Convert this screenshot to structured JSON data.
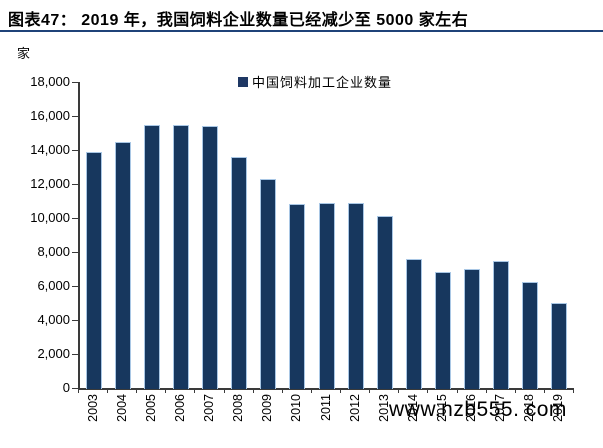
{
  "header": {
    "title": "图表47： 2019 年，我国饲料企业数量已经减少至 5000 家左右"
  },
  "y_axis": {
    "unit_label": "家",
    "tick_labels": [
      "0",
      "2,000",
      "4,000",
      "6,000",
      "8,000",
      "10,000",
      "12,000",
      "14,000",
      "16,000",
      "18,000"
    ]
  },
  "legend": {
    "label": "中国饲料加工企业数量"
  },
  "watermark": "www.nzb555. com",
  "colors": {
    "bar_fill": "#17375E",
    "bar_edge": "#A9C7E5",
    "legend_swatch": "#1F3864",
    "title_underline": "#1F4379",
    "axis": "#3a3a3a"
  },
  "chart_data": {
    "type": "bar",
    "title": "图表47： 2019 年，我国饲料企业数量已经减少至 5000 家左右",
    "series_name": "中国饲料加工企业数量",
    "categories": [
      "2003",
      "2004",
      "2005",
      "2006",
      "2007",
      "2008",
      "2009",
      "2010",
      "2011",
      "2012",
      "2013",
      "2014",
      "2015",
      "2016",
      "2017",
      "2018",
      "2019"
    ],
    "values": [
      13900,
      14500,
      15500,
      15500,
      15400,
      13600,
      12300,
      10800,
      10900,
      10900,
      10100,
      7600,
      6800,
      7000,
      7500,
      6250,
      5000
    ],
    "xlabel": "",
    "ylabel": "家",
    "ylim": [
      0,
      18000
    ],
    "ytick_step": 2000,
    "grid": false,
    "legend_position": "top-center",
    "bar_color": "#17375E"
  }
}
